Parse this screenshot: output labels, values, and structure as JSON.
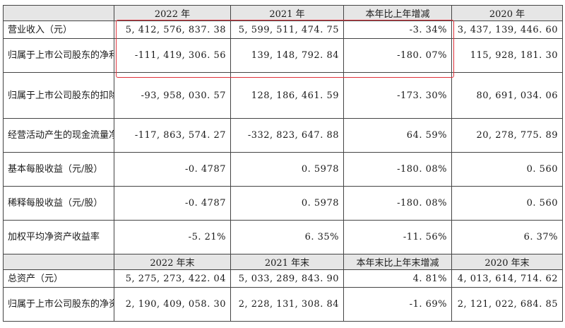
{
  "header1": {
    "label": "",
    "cols": [
      "2022 年",
      "2021 年",
      "本年比上年增减",
      "2020 年"
    ]
  },
  "rows1": [
    {
      "label": "营业收入（元）",
      "values": [
        "5, 412, 576, 837. 38",
        "5, 599, 511, 474. 75",
        "-3. 34%",
        "3, 437, 139, 446. 60"
      ]
    },
    {
      "label": "归属于上市公司股东的净利润（元）",
      "values": [
        "-111, 419, 306. 56",
        "139, 148, 792. 84",
        "-180. 07%",
        "115, 928, 181. 30"
      ]
    },
    {
      "label": "归属于上市公司股东的扣除非经常性损益的净利润（元）",
      "values": [
        "-93, 958, 030. 57",
        "128, 186, 461. 59",
        "-173. 30%",
        "80, 691, 034. 06"
      ]
    },
    {
      "label": "经营活动产生的现金流量净额（元）",
      "values": [
        "-117, 863, 574. 27",
        "-332, 823, 647. 88",
        "64. 59%",
        "20, 278, 775. 89"
      ]
    },
    {
      "label": "基本每股收益（元/股）",
      "values": [
        "-0. 4787",
        "0. 5978",
        "-180. 08%",
        "0. 560"
      ]
    },
    {
      "label": "稀释每股收益（元/股）",
      "values": [
        "-0. 4787",
        "0. 5978",
        "-180. 08%",
        "0. 560"
      ]
    },
    {
      "label": "加权平均净资产收益率",
      "values": [
        "-5. 21%",
        "6. 35%",
        "-11. 56%",
        "6. 37%"
      ]
    }
  ],
  "header2": {
    "label": "",
    "cols": [
      "2022 年末",
      "2021 年末",
      "本年末比上年末增减",
      "2020 年末"
    ]
  },
  "rows2": [
    {
      "label": "总资产（元）",
      "values": [
        "5, 275, 273, 422. 04",
        "5, 033, 289, 843. 90",
        "4. 81%",
        "4, 013, 614, 714. 62"
      ]
    },
    {
      "label": "归属于上市公司股东的净资产（元）",
      "values": [
        "2, 190, 409, 058. 30",
        "2, 228, 131, 308. 84",
        "-1. 69%",
        "2, 121, 022, 684. 85"
      ]
    }
  ],
  "colors": {
    "header_bg": "#e6e6e6",
    "border": "#444444",
    "highlight": "#e0303a"
  }
}
